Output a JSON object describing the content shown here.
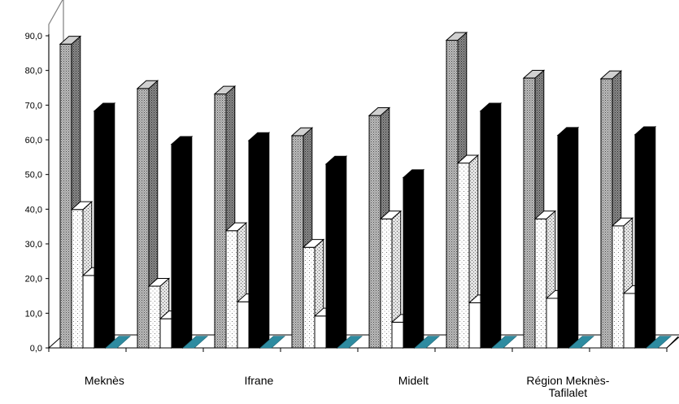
{
  "chart_data": {
    "type": "bar",
    "categories": [
      "Meknès",
      "",
      "Ifrane",
      "",
      "Midelt",
      "",
      "Région Meknès-Tafilalet",
      ""
    ],
    "category_labels": [
      {
        "group": 0,
        "lines": [
          "Meknès"
        ]
      },
      {
        "group": 2,
        "lines": [
          "Ifrane"
        ]
      },
      {
        "group": 4,
        "lines": [
          "Midelt"
        ]
      },
      {
        "group": 6,
        "lines": [
          "Région Meknès-",
          "Tafilalet"
        ]
      }
    ],
    "series": [
      {
        "values": [
          87.6,
          74.8,
          73.2,
          61.2,
          67.0,
          88.7,
          77.8,
          77.6
        ],
        "color": "#9a9a9a",
        "pattern": "dense-dots"
      },
      {
        "values": [
          39.9,
          17.8,
          33.8,
          29.0,
          37.2,
          53.3,
          37.2,
          35.2
        ],
        "color": "#ffffff",
        "pattern": "sparse-dots"
      },
      {
        "values": [
          20.9,
          8.4,
          13.3,
          9.2,
          7.4,
          13.0,
          14.3,
          15.7
        ],
        "color": "#ffffff",
        "pattern": "none"
      },
      {
        "values": [
          68.3,
          58.7,
          59.8,
          53.0,
          49.1,
          68.3,
          61.3,
          61.5
        ],
        "color": "#000000",
        "pattern": "solid"
      },
      {
        "values": [
          0,
          0,
          0,
          0,
          0,
          0,
          0,
          0
        ],
        "color": "#2e8ba0",
        "pattern": "solid"
      }
    ],
    "y_ticks": [
      "0,0",
      "10,0",
      "20,0",
      "30,0",
      "40,0",
      "50,0",
      "60,0",
      "70,0",
      "80,0",
      "90,0"
    ],
    "ylim": [
      0,
      90
    ],
    "grid": false,
    "legend": "none",
    "style": "3d-column"
  }
}
